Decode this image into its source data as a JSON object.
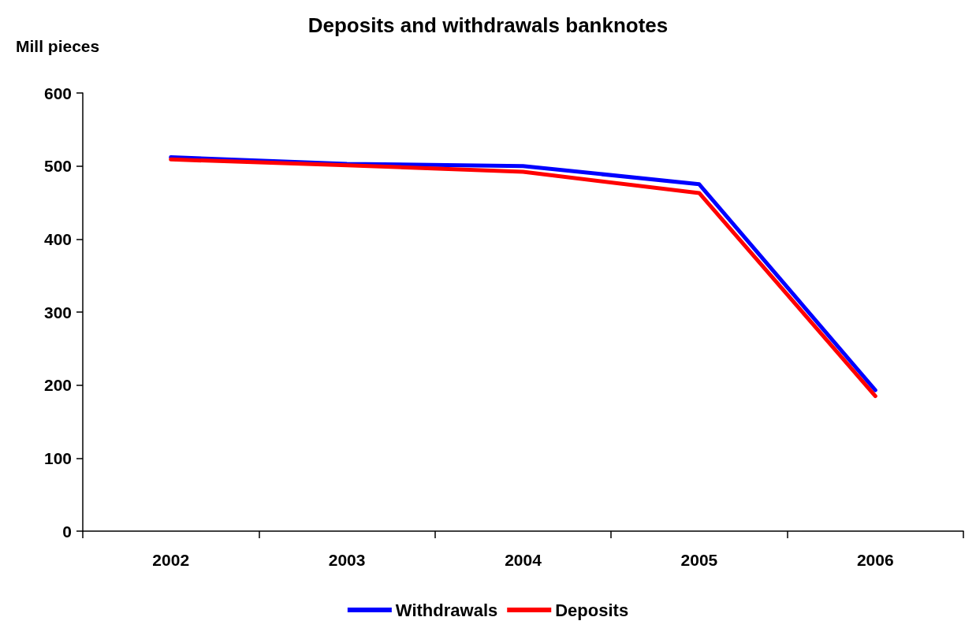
{
  "chart_data": {
    "type": "line",
    "title": "Deposits and withdrawals banknotes",
    "ylabel": "Mill pieces",
    "categories": [
      "2002",
      "2003",
      "2004",
      "2005",
      "2006"
    ],
    "series": [
      {
        "name": "Withdrawals",
        "color": "#0000ff",
        "values": [
          512,
          503,
          500,
          475,
          193
        ]
      },
      {
        "name": "Deposits",
        "color": "#ff0000",
        "values": [
          509,
          501,
          492,
          463,
          185
        ]
      }
    ],
    "ylim": [
      0,
      600
    ],
    "yticks": [
      0,
      100,
      200,
      300,
      400,
      500,
      600
    ],
    "grid": false,
    "legend": "bottom",
    "marker": "none",
    "line_style": "solid"
  }
}
